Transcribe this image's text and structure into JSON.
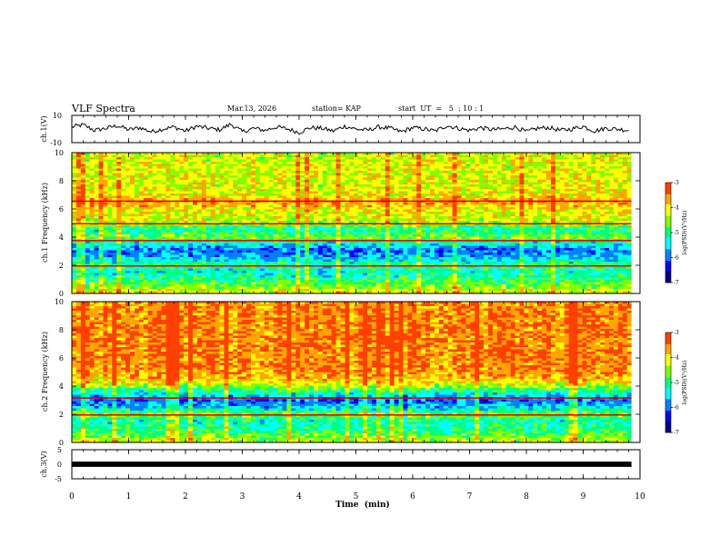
{
  "header": {
    "title": "VLF Spectra",
    "date": "Mar.13, 2026",
    "station": "station= KAP",
    "start_ut": "start  UT  =   5  : 10 : 1"
  },
  "colors": {
    "bg": "#ffffff",
    "axis": "#000000",
    "colormap": [
      "#00008b",
      "#0000ff",
      "#0080ff",
      "#00ffff",
      "#00ff80",
      "#80ff00",
      "#ffff00",
      "#ffa500",
      "#ff4000",
      "#ff0000",
      "#ffffff"
    ]
  },
  "chart_data": [
    {
      "type": "line",
      "name": "ch1-waveform",
      "ylabel": "ch.1(V)",
      "ylim": [
        -10,
        10
      ],
      "yticks": [
        "10",
        "-10"
      ],
      "xlim": [
        0,
        10
      ],
      "x": [
        0,
        0.2,
        0.4,
        0.6,
        0.8,
        1.0,
        1.2,
        1.4,
        1.6,
        1.8,
        2.0,
        2.2,
        2.4,
        2.6,
        2.8,
        3.0,
        3.2,
        3.4,
        3.6,
        3.8,
        4.0,
        4.2,
        4.4,
        4.6,
        4.8,
        5.0,
        5.2,
        5.4,
        5.6,
        5.8,
        6.0,
        6.2,
        6.4,
        6.6,
        6.8,
        7.0,
        7.2,
        7.4,
        7.6,
        7.8,
        8.0,
        8.2,
        8.4,
        8.6,
        8.8,
        9.0,
        9.2,
        9.4,
        9.6,
        9.8
      ],
      "values": [
        1.5,
        3.0,
        -1.0,
        0.5,
        2.5,
        -0.5,
        1.0,
        -2.0,
        0.0,
        1.5,
        -1.5,
        2.0,
        0.5,
        -0.5,
        3.5,
        -2.0,
        0.5,
        -1.0,
        1.5,
        0.0,
        -2.5,
        1.0,
        0.5,
        -1.5,
        2.0,
        0.0,
        -1.0,
        1.5,
        0.5,
        -2.0,
        1.0,
        0.0,
        -1.5,
        2.5,
        0.5,
        -1.0,
        1.0,
        -0.5,
        0.0,
        1.5,
        -2.0,
        0.5,
        1.0,
        -1.0,
        0.0,
        2.0,
        -1.5,
        0.5,
        0.0,
        -1.0
      ]
    },
    {
      "type": "heatmap",
      "name": "ch1-spectrogram",
      "ylabel": "ch.1 Frequency (kHz)",
      "ylim": [
        0,
        10
      ],
      "yticks": [
        "0",
        "2",
        "4",
        "6",
        "8",
        "10"
      ],
      "xlim": [
        0,
        9.85
      ],
      "z_label": "log(PSD)(V²/Hz)",
      "zlim": [
        -7,
        -3
      ],
      "colorbar_ticks": [
        "-3",
        "-4",
        "-5",
        "-6",
        "-7"
      ],
      "profile_freq_khz": [
        0.2,
        0.5,
        1.0,
        1.5,
        2.0,
        2.5,
        3.0,
        3.5,
        4.0,
        4.5,
        5.0,
        5.5,
        6.0,
        6.5,
        7.0,
        8.0,
        9.0,
        10.0
      ],
      "profile_level": [
        -4.2,
        -4.6,
        -5.0,
        -5.3,
        -5.0,
        -5.6,
        -6.0,
        -5.4,
        -4.6,
        -5.2,
        -4.4,
        -4.2,
        -4.1,
        -3.6,
        -4.1,
        -4.2,
        -4.2,
        -4.3
      ],
      "lines_khz": [
        6.6,
        5.0,
        2.0,
        3.8
      ]
    },
    {
      "type": "heatmap",
      "name": "ch2-spectrogram",
      "ylabel": "ch.2 Frequency (kHz)",
      "ylim": [
        0,
        10
      ],
      "yticks": [
        "0",
        "2",
        "4",
        "6",
        "8",
        "10"
      ],
      "xlim": [
        0,
        9.85
      ],
      "z_label": "log(PSD)(V²/Hz)",
      "zlim": [
        -7,
        -3
      ],
      "colorbar_ticks": [
        "-3",
        "-4",
        "-5",
        "-6",
        "-7"
      ],
      "profile_freq_khz": [
        0.2,
        0.5,
        1.0,
        1.5,
        2.0,
        2.5,
        3.0,
        3.5,
        4.0,
        4.5,
        5.0,
        5.5,
        6.0,
        6.5,
        7.0,
        8.0,
        9.0,
        10.0
      ],
      "profile_level": [
        -4.4,
        -4.7,
        -5.0,
        -5.2,
        -4.6,
        -5.6,
        -6.0,
        -5.3,
        -4.4,
        -3.8,
        -3.6,
        -3.5,
        -3.5,
        -3.5,
        -3.5,
        -3.5,
        -3.5,
        -3.6
      ],
      "lines_khz": [
        2.0,
        3.2
      ]
    },
    {
      "type": "line",
      "name": "ch3-waveform",
      "ylabel": "ch.3(V)",
      "ylim": [
        -5,
        5
      ],
      "yticks": [
        "5",
        "0",
        "-5"
      ],
      "xlim": [
        0,
        10
      ],
      "xlabel": "Time  (min)",
      "xticks": [
        "0",
        "1",
        "2",
        "3",
        "4",
        "5",
        "6",
        "7",
        "8",
        "9",
        "10"
      ],
      "level_v": 0,
      "band_halfwidth_v": 0.3
    }
  ]
}
